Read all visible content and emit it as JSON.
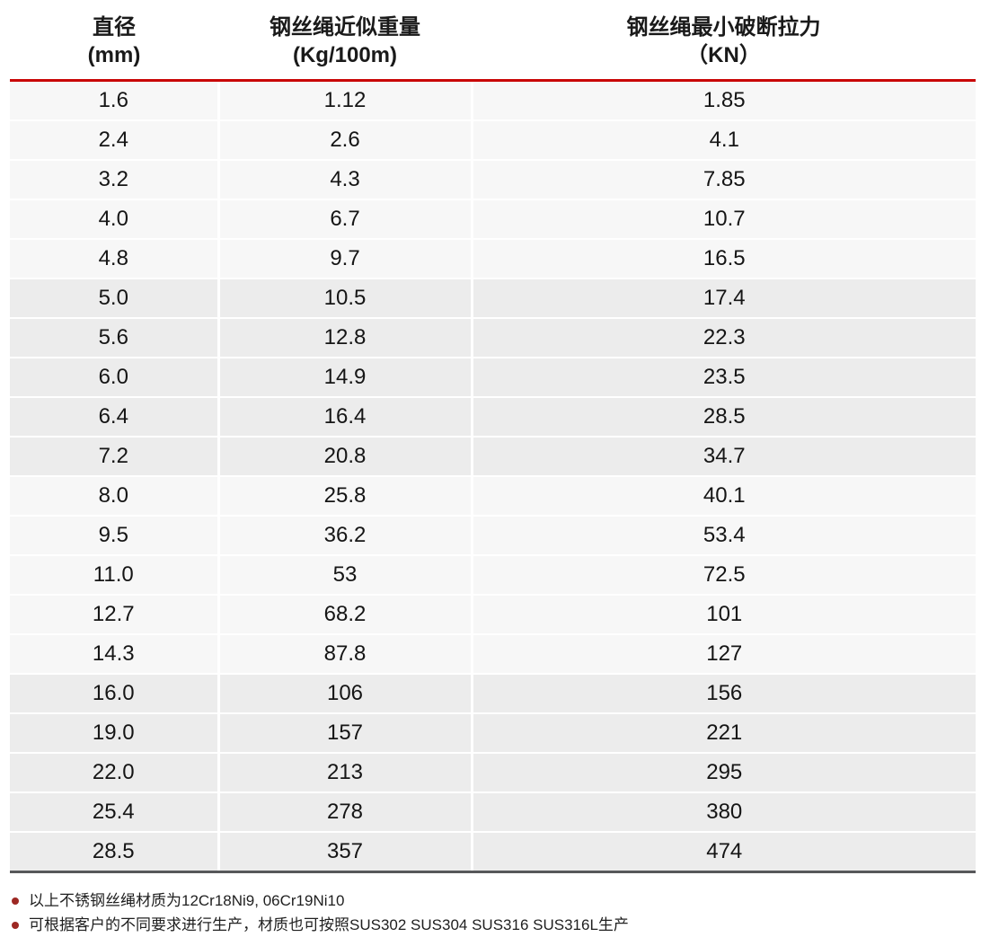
{
  "table": {
    "columns": [
      {
        "title": "直径",
        "unit": "(mm)"
      },
      {
        "title": "钢丝绳近似重量",
        "unit": "(Kg/100m)"
      },
      {
        "title": "钢丝绳最小破断拉力",
        "unit": "（KN）"
      }
    ],
    "rows": [
      [
        "1.6",
        "1.12",
        "1.85"
      ],
      [
        "2.4",
        "2.6",
        "4.1"
      ],
      [
        "3.2",
        "4.3",
        "7.85"
      ],
      [
        "4.0",
        "6.7",
        "10.7"
      ],
      [
        "4.8",
        "9.7",
        "16.5"
      ],
      [
        "5.0",
        "10.5",
        "17.4"
      ],
      [
        "5.6",
        "12.8",
        "22.3"
      ],
      [
        "6.0",
        "14.9",
        "23.5"
      ],
      [
        "6.4",
        "16.4",
        "28.5"
      ],
      [
        "7.2",
        "20.8",
        "34.7"
      ],
      [
        "8.0",
        "25.8",
        "40.1"
      ],
      [
        "9.5",
        "36.2",
        "53.4"
      ],
      [
        "11.0",
        "53",
        "72.5"
      ],
      [
        "12.7",
        "68.2",
        "101"
      ],
      [
        "14.3",
        "87.8",
        "127"
      ],
      [
        "16.0",
        "106",
        "156"
      ],
      [
        "19.0",
        "157",
        "221"
      ],
      [
        "22.0",
        "213",
        "295"
      ],
      [
        "25.4",
        "278",
        "380"
      ],
      [
        "28.5",
        "357",
        "474"
      ]
    ]
  },
  "notes": [
    "以上不锈钢丝绳材质为12Cr18Ni9, 06Cr19Ni10",
    "可根据客户的不同要求进行生产，材质也可按照SUS302 SUS304 SUS316 SUS316L生产"
  ],
  "colors": {
    "header_rule_red": "#c90606",
    "bottom_rule_gray": "#57585a",
    "row_group_light": "#f7f7f7",
    "row_group_dark": "#ececec",
    "note_bullet_red": "#9d2823",
    "text": "#1a1a1a"
  }
}
